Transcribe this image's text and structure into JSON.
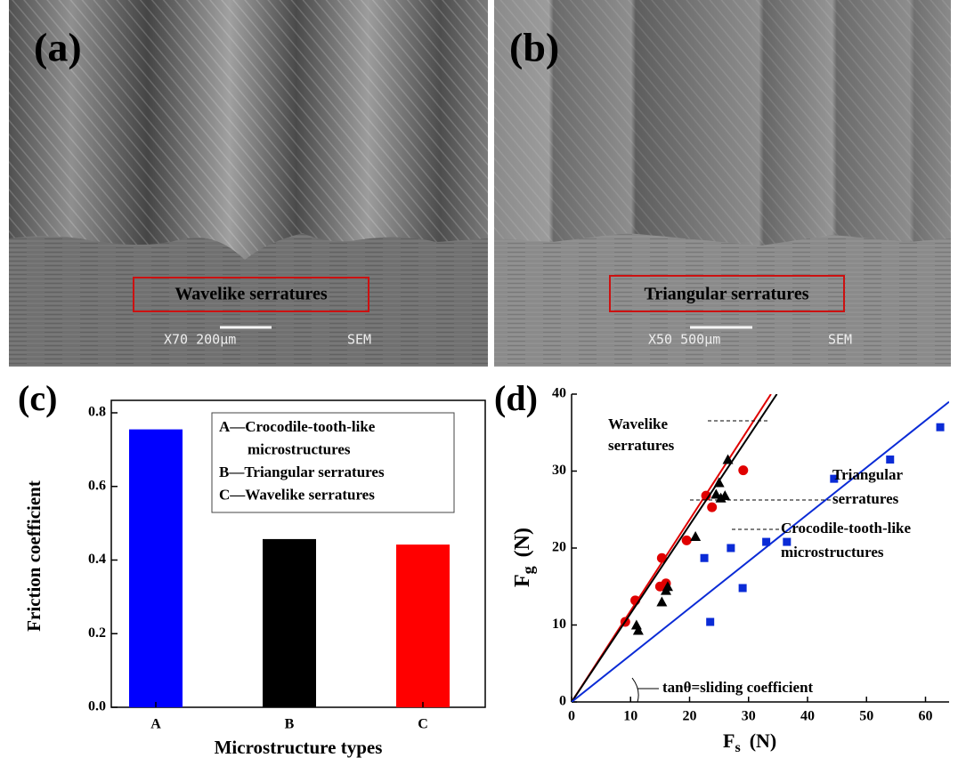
{
  "panels": [
    {
      "label": "(a)",
      "caption": "Wavelike serratures",
      "scale_text": "X70 200μm",
      "mode": "SEM"
    },
    {
      "label": "(b)",
      "caption": "Triangular serratures",
      "scale_text": "X50 500μm",
      "mode": "SEM"
    }
  ],
  "chart_data": [
    {
      "type": "bar",
      "panel_label": "(c)",
      "categories": [
        "A",
        "B",
        "C"
      ],
      "values": [
        0.755,
        0.457,
        0.442
      ],
      "colors": [
        "#0000ff",
        "#000000",
        "#ff0000"
      ],
      "ylim": [
        0,
        0.8
      ],
      "yticks": [
        {
          "value": 0,
          "label": "0.0"
        },
        {
          "value": 0.2,
          "label": "0.2"
        },
        {
          "value": 0.4,
          "label": "0.4"
        },
        {
          "value": 0.6,
          "label": "0.6"
        },
        {
          "value": 0.8,
          "label": "0.8"
        }
      ],
      "xlabel": "Microstructure types",
      "ylabel": "Friction coefficient",
      "legend_lines": [
        "A—Crocodile-tooth-like",
        "microstructures",
        "B—Triangular serratures",
        "C—Wavelike serratures"
      ]
    },
    {
      "type": "scatter",
      "panel_label": "(d)",
      "xlim": [
        0,
        64
      ],
      "ylim": [
        0,
        40
      ],
      "xticks": [
        0,
        10,
        20,
        30,
        40,
        50,
        60
      ],
      "yticks": [
        0,
        10,
        20,
        30,
        40
      ],
      "xlabel": {
        "symbol": "F",
        "subscript": "s",
        "unit": "(N)"
      },
      "ylabel": {
        "symbol": "F",
        "subscript": "g",
        "unit": "(N)"
      },
      "series": [
        {
          "label_lines": [
            "Wavelike",
            "serratures"
          ],
          "color": "#e00000",
          "marker": "circle",
          "x": [
            9.1,
            10.8,
            15.0,
            15.3,
            16.0,
            19.5,
            22.8,
            23.8,
            29.1
          ],
          "y": [
            10.4,
            13.2,
            15.0,
            18.7,
            15.4,
            21.0,
            26.8,
            25.3,
            30.1
          ],
          "fit_x": [
            0,
            33.8
          ],
          "fit_y": [
            0,
            40
          ]
        },
        {
          "label_lines": [
            "Triangular",
            "serratures"
          ],
          "color": "#000000",
          "marker": "triangle",
          "x": [
            11.0,
            11.3,
            15.3,
            16.0,
            16.3,
            21.0,
            24.5,
            25.0,
            25.3,
            26.0,
            26.5
          ],
          "y": [
            10.0,
            9.3,
            13.0,
            14.5,
            15.0,
            21.5,
            27.0,
            28.5,
            26.5,
            26.8,
            31.5
          ],
          "fit_x": [
            0,
            34.8
          ],
          "fit_y": [
            0,
            40
          ]
        },
        {
          "label_lines": [
            "Crocodile-tooth-like",
            "microstructures"
          ],
          "color": "#0a2bd6",
          "marker": "square",
          "x": [
            23.5,
            22.5,
            27.0,
            29.0,
            33.0,
            36.5,
            44.5,
            54.0,
            62.5
          ],
          "y": [
            10.4,
            18.7,
            20.0,
            14.8,
            20.8,
            20.8,
            29.0,
            31.5,
            35.7
          ],
          "fit_x": [
            0,
            64
          ],
          "fit_y": [
            0,
            39
          ]
        }
      ],
      "annotation": "tanθ=sliding coefficient"
    }
  ]
}
